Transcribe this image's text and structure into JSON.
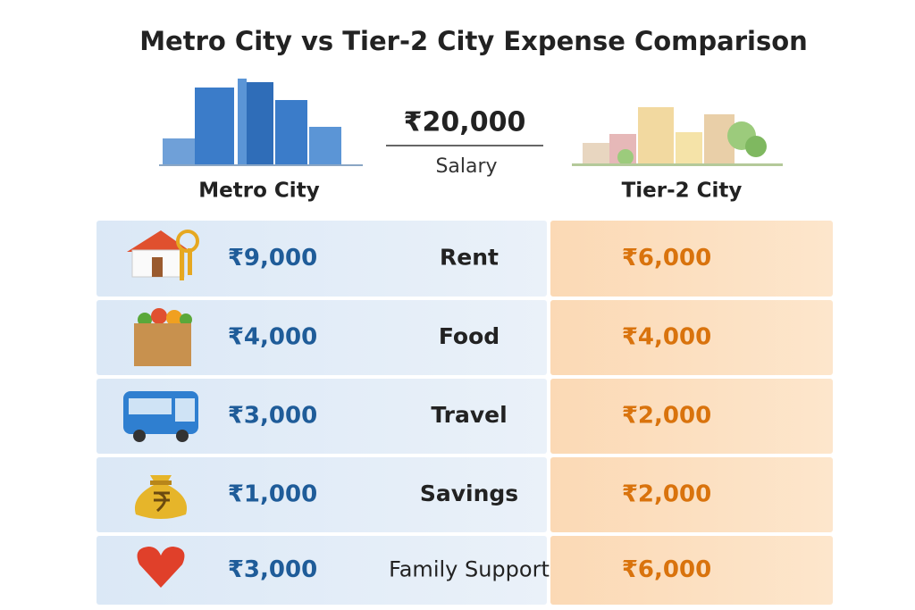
{
  "header": {
    "title": "Metro City vs Tier-2 City Expense Comparison",
    "salary": "₹20,000",
    "salary_label": "Salary",
    "left_city": "Metro City",
    "right_city": "Tier-2 City"
  },
  "table": {
    "rows": [
      [
        "₹9,000",
        "Rent",
        "₹6,000"
      ],
      [
        "₹4,000",
        "Food",
        "₹4,000"
      ],
      [
        "₹3,000",
        "Travel",
        "₹2,000"
      ],
      [
        "₹1,000",
        "Savings",
        "₹2,000"
      ],
      [
        "₹3,000",
        "Family Support",
        "₹6,000"
      ]
    ]
  }
}
